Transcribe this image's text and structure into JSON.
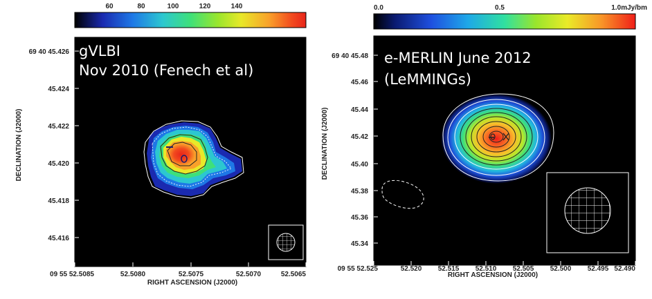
{
  "panels": [
    {
      "id": "gvlbi",
      "overlay_lines": [
        "gVLBI",
        "Nov 2010 (Fenech et al)"
      ],
      "colorbar_ticks": [
        "60",
        "80",
        "100",
        "120",
        "140"
      ],
      "colorbar_unit": "",
      "y_ticks": [
        "69 40 45.426",
        "45.424",
        "45.422",
        "45.420",
        "45.418",
        "45.416"
      ],
      "x_ticks": [
        "09 55 52.5085",
        "52.5080",
        "52.5075",
        "52.5070",
        "52.5065"
      ],
      "ylabel": "DECLINATION (J2000)",
      "xlabel": "RIGHT ASCENSION (J2000)"
    },
    {
      "id": "emerlin",
      "overlay_lines": [
        "e-MERLIN  June 2012",
        "(LeMMINGs)"
      ],
      "colorbar_ticks": [
        "0.0",
        "0.5",
        "1.0mJy/bm"
      ],
      "y_ticks": [
        "69 40 45.48",
        "45.46",
        "45.44",
        "45.42",
        "45.40",
        "45.38",
        "45.36",
        "45.34"
      ],
      "x_ticks": [
        "09 55 52.525",
        "52.520",
        "52.515",
        "52.510",
        "52.505",
        "52.500",
        "52.495",
        "52.490"
      ],
      "ylabel": "DECLINATION (J2000)",
      "xlabel": "RIGHT ASCENSION (J2000)"
    }
  ],
  "colors": {
    "background": "#000000",
    "contour": "#ffffff",
    "colormap": [
      "#000000",
      "#1a2ab0",
      "#1e78e6",
      "#2cc7d0",
      "#3ee07a",
      "#9ae62c",
      "#e8e829",
      "#f9a12a",
      "#f24a1e",
      "#e8251a"
    ]
  }
}
